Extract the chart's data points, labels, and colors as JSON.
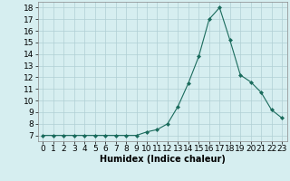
{
  "x": [
    0,
    1,
    2,
    3,
    4,
    5,
    6,
    7,
    8,
    9,
    10,
    11,
    12,
    13,
    14,
    15,
    16,
    17,
    18,
    19,
    20,
    21,
    22,
    23
  ],
  "y": [
    7,
    7,
    7,
    7,
    7,
    7,
    7,
    7,
    7,
    7,
    7.3,
    7.5,
    8.0,
    9.5,
    11.5,
    13.8,
    17.0,
    18.0,
    15.2,
    12.2,
    11.6,
    10.7,
    9.2,
    8.5
  ],
  "line_color": "#1a6b5c",
  "marker": "D",
  "marker_size": 2,
  "bg_color": "#d6eef0",
  "grid_color": "#b0cfd4",
  "xlabel": "Humidex (Indice chaleur)",
  "xlabel_fontsize": 7,
  "ylabel_ticks": [
    7,
    8,
    9,
    10,
    11,
    12,
    13,
    14,
    15,
    16,
    17,
    18
  ],
  "xlim": [
    -0.5,
    23.5
  ],
  "ylim": [
    6.5,
    18.5
  ],
  "tick_fontsize": 6.5
}
